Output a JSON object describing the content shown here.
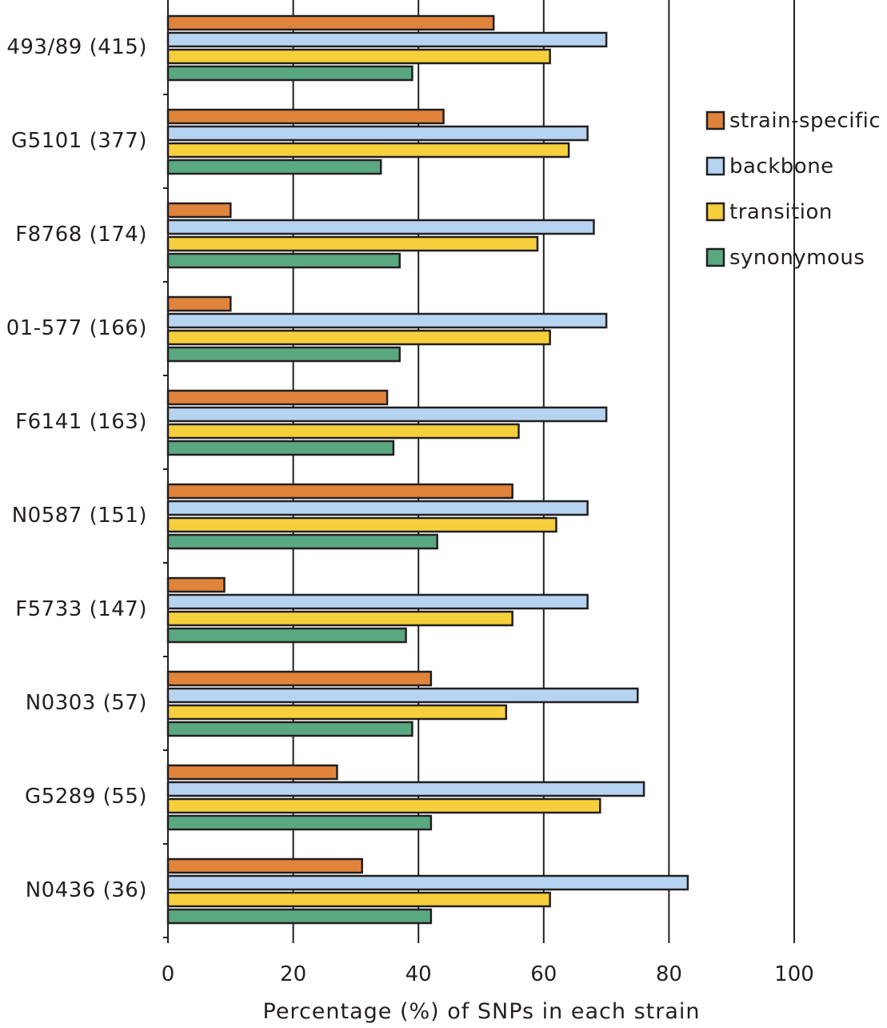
{
  "chart_data": {
    "type": "bar",
    "orientation": "horizontal",
    "title": "",
    "xlabel": "Percentage (%) of SNPs in each strain",
    "ylabel": "",
    "xlim": [
      0,
      100
    ],
    "xticks": [
      "0",
      "20",
      "40",
      "60",
      "80",
      "100"
    ],
    "grid": true,
    "legend_position": "top-right",
    "categories": [
      "493/89 (415)",
      "G5101 (377)",
      "F8768 (174)",
      "01-577 (166)",
      "F6141 (163)",
      "N0587 (151)",
      "F5733 (147)",
      "N0303 (57)",
      "G5289 (55)",
      "N0436 (36)"
    ],
    "series": [
      {
        "name": "strain-specific",
        "color": "#e0843c",
        "values": [
          52,
          44,
          10,
          10,
          35,
          55,
          9,
          42,
          27,
          31
        ]
      },
      {
        "name": "backbone",
        "color": "#b6d4f2",
        "values": [
          70,
          67,
          68,
          70,
          70,
          67,
          67,
          75,
          76,
          83
        ]
      },
      {
        "name": "transition",
        "color": "#f6cf3c",
        "values": [
          61,
          64,
          59,
          61,
          56,
          62,
          55,
          54,
          69,
          61
        ]
      },
      {
        "name": "synonymous",
        "color": "#5aa882",
        "values": [
          39,
          34,
          37,
          37,
          36,
          43,
          38,
          39,
          42,
          42
        ]
      }
    ]
  }
}
